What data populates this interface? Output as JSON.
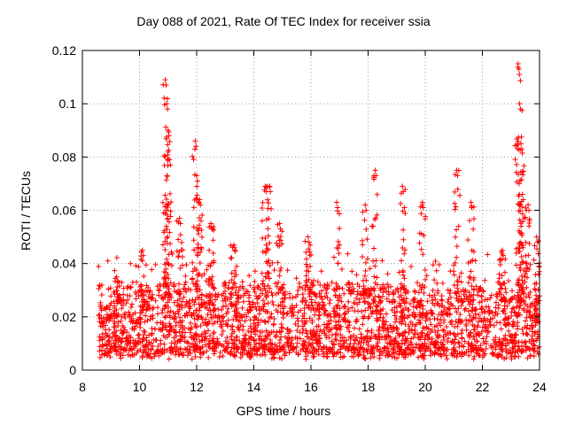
{
  "chart_data": {
    "type": "scatter",
    "title": "Day 088 of 2021, Rate Of TEC Index for receiver ssia",
    "xlabel": "GPS time / hours",
    "ylabel": "ROTI / TECUs",
    "xlim": [
      8,
      24
    ],
    "ylim": [
      0,
      0.12
    ],
    "xticks": [
      "8",
      "10",
      "12",
      "14",
      "16",
      "18",
      "20",
      "22",
      "24"
    ],
    "yticks": [
      "0",
      "0.02",
      "0.04",
      "0.06",
      "0.08",
      "0.1",
      "0.12"
    ],
    "grid": true,
    "marker": "+",
    "color": "#ff0000",
    "series": [
      {
        "name": "ROTI",
        "x_range": [
          8.55,
          24.0
        ],
        "baseline_range": [
          0.004,
          0.03
        ],
        "notable_points": [
          {
            "x": 9.2,
            "y": 0.035
          },
          {
            "x": 10.1,
            "y": 0.045
          },
          {
            "x": 10.9,
            "y": 0.109
          },
          {
            "x": 10.95,
            "y": 0.1
          },
          {
            "x": 11.0,
            "y": 0.09
          },
          {
            "x": 11.05,
            "y": 0.079
          },
          {
            "x": 11.4,
            "y": 0.057
          },
          {
            "x": 11.95,
            "y": 0.086
          },
          {
            "x": 12.0,
            "y": 0.073
          },
          {
            "x": 12.1,
            "y": 0.064
          },
          {
            "x": 12.5,
            "y": 0.055
          },
          {
            "x": 13.3,
            "y": 0.047
          },
          {
            "x": 14.4,
            "y": 0.069
          },
          {
            "x": 14.55,
            "y": 0.069
          },
          {
            "x": 14.9,
            "y": 0.055
          },
          {
            "x": 15.9,
            "y": 0.05
          },
          {
            "x": 16.9,
            "y": 0.063
          },
          {
            "x": 17.9,
            "y": 0.062
          },
          {
            "x": 18.25,
            "y": 0.075
          },
          {
            "x": 19.2,
            "y": 0.069
          },
          {
            "x": 19.9,
            "y": 0.063
          },
          {
            "x": 21.1,
            "y": 0.075
          },
          {
            "x": 21.6,
            "y": 0.063
          },
          {
            "x": 22.7,
            "y": 0.045
          },
          {
            "x": 23.25,
            "y": 0.115
          },
          {
            "x": 23.3,
            "y": 0.1
          },
          {
            "x": 23.35,
            "y": 0.085
          },
          {
            "x": 23.4,
            "y": 0.066
          },
          {
            "x": 23.6,
            "y": 0.062
          },
          {
            "x": 23.9,
            "y": 0.05
          }
        ]
      }
    ]
  }
}
